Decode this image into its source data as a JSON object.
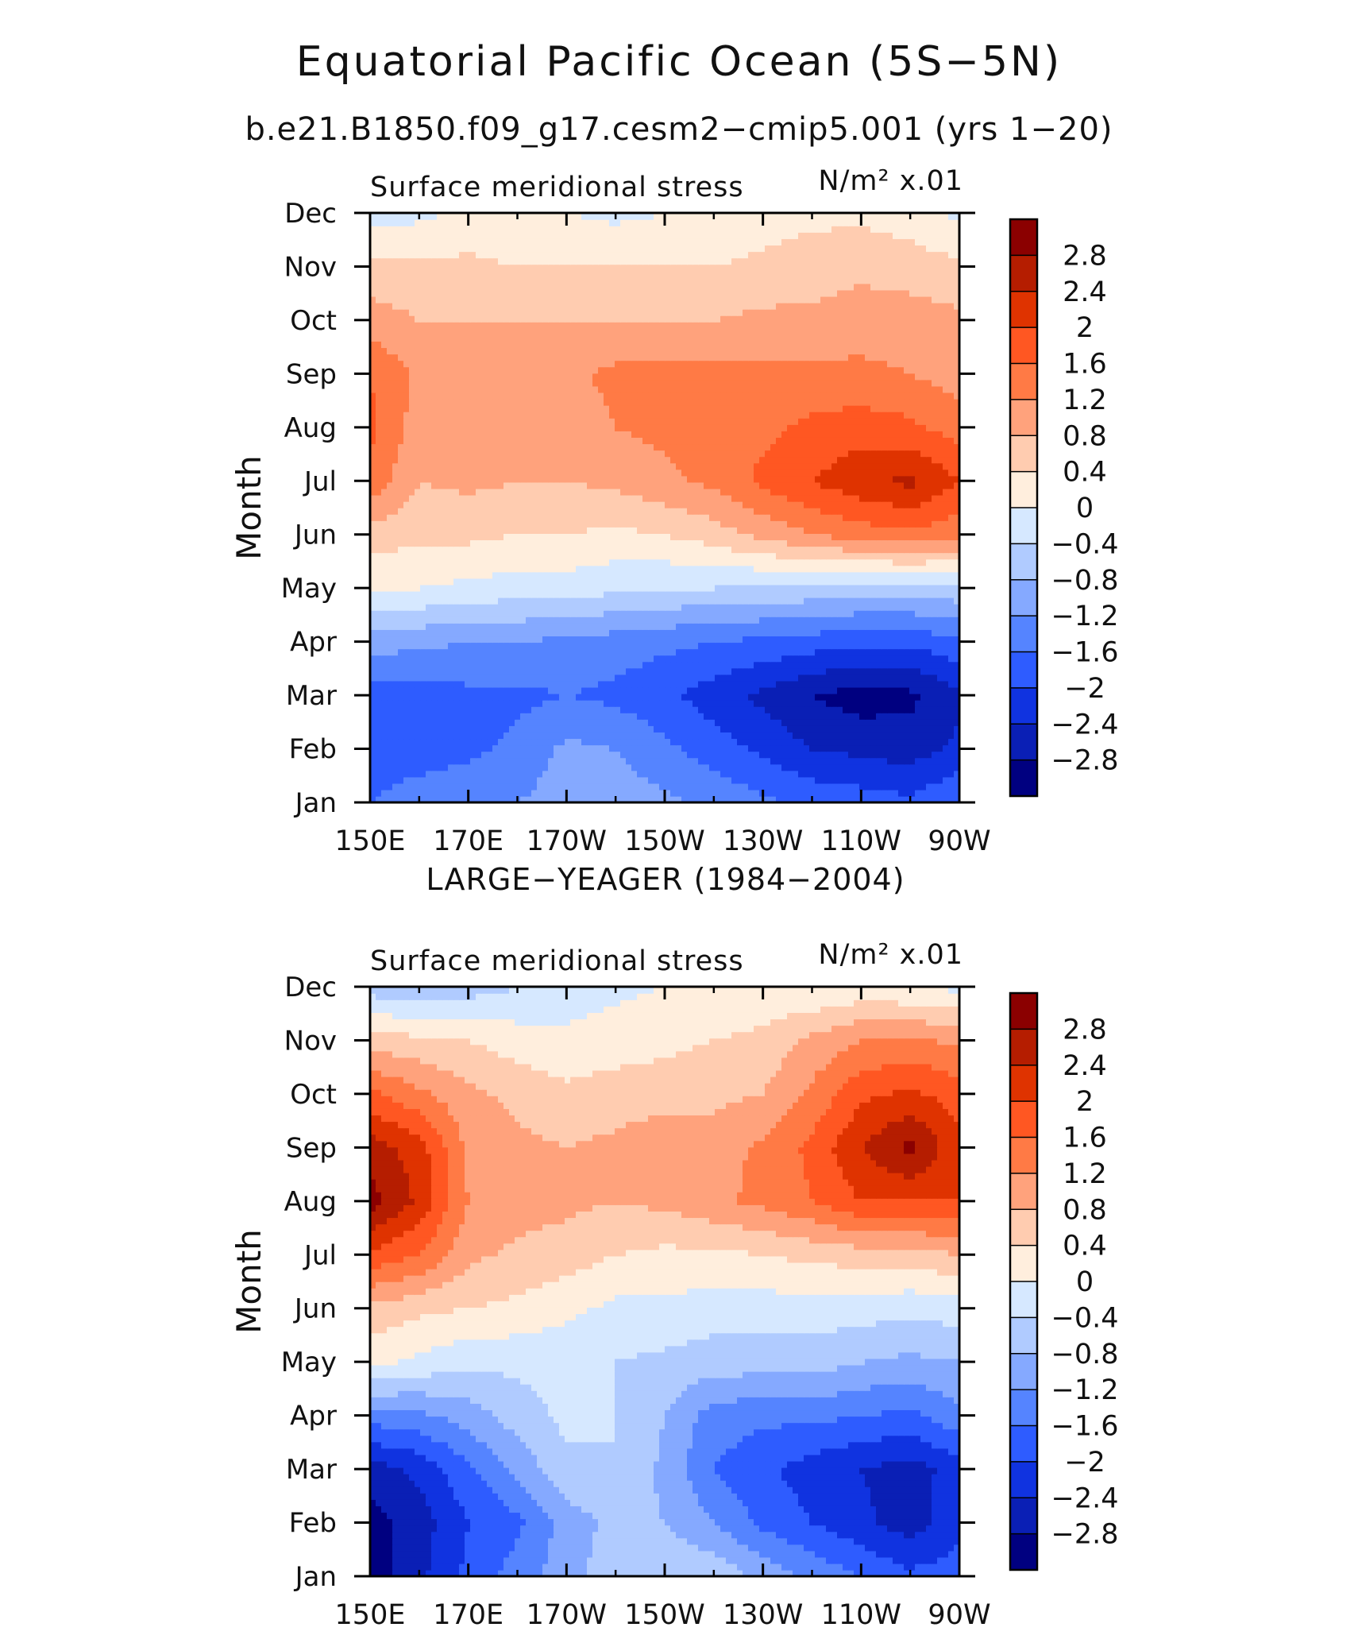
{
  "figure": {
    "title": "Equatorial Pacific Ocean (5S−5N)",
    "subtitle": "b.e21.B1850.f09_g17.cesm2−cmip5.001 (yrs 1−20)",
    "y_axis_title": "Month"
  },
  "chart_data": [
    {
      "type": "heatmap",
      "title": "",
      "left_label": "Surface meridional stress",
      "units_label": "N/m² x.01",
      "xlabel": "",
      "ylabel": "Month",
      "x_ticks": [
        "150E",
        "170E",
        "170W",
        "150W",
        "130W",
        "110W",
        "90W"
      ],
      "x_values": [
        150,
        170,
        190,
        210,
        230,
        250,
        270
      ],
      "y_ticks": [
        "Jan",
        "Feb",
        "Mar",
        "Apr",
        "May",
        "Jun",
        "Jul",
        "Aug",
        "Sep",
        "Oct",
        "Nov",
        "Dec"
      ],
      "colorbar_levels": [
        -2.8,
        -2.4,
        -2,
        -1.6,
        -1.2,
        -0.8,
        -0.4,
        0,
        0.4,
        0.8,
        1.2,
        1.6,
        2,
        2.4,
        2.8
      ],
      "colorbar_labels": [
        "2.8",
        "2.4",
        "2",
        "1.6",
        "1.2",
        "0.8",
        "0.4",
        "0",
        "−0.4",
        "−0.8",
        "−1.2",
        "−1.6",
        "−2",
        "−2.4",
        "−2.8"
      ],
      "colorbar_colors": [
        "#8b0000",
        "#b51d00",
        "#df3300",
        "#ff5722",
        "#ff7a45",
        "#ffa27c",
        "#ffccb0",
        "#ffeedd",
        "#d6e8ff",
        "#b0cbff",
        "#85a9ff",
        "#5584ff",
        "#2e5cff",
        "#1033e0",
        "#0a1fb5",
        "#000080"
      ],
      "lons": [
        150,
        160,
        170,
        180,
        190,
        200,
        210,
        220,
        230,
        240,
        250,
        260,
        270
      ],
      "months": [
        "Jan",
        "Feb",
        "Mar",
        "Apr",
        "May",
        "Jun",
        "Jul",
        "Aug",
        "Sep",
        "Oct",
        "Nov",
        "Dec"
      ],
      "values": [
        [
          -1.6,
          -1.4,
          -1.3,
          -1.2,
          -1.0,
          -1.0,
          -1.1,
          -1.3,
          -1.5,
          -1.7,
          -1.8,
          -1.9,
          -1.6
        ],
        [
          -1.8,
          -1.8,
          -1.7,
          -1.5,
          -1.1,
          -1.2,
          -1.5,
          -1.8,
          -2.1,
          -2.4,
          -2.5,
          -2.6,
          -2.3
        ],
        [
          -1.8,
          -1.8,
          -1.7,
          -1.7,
          -1.6,
          -1.7,
          -1.9,
          -2.2,
          -2.5,
          -2.8,
          -3.0,
          -2.9,
          -2.5
        ],
        [
          -1.0,
          -1.1,
          -1.2,
          -1.2,
          -1.3,
          -1.4,
          -1.5,
          -1.6,
          -1.7,
          -1.8,
          -1.9,
          -1.9,
          -1.7
        ],
        [
          0.1,
          0.0,
          -0.1,
          -0.2,
          -0.2,
          -0.3,
          -0.4,
          -0.4,
          -0.5,
          -0.5,
          -0.6,
          -0.6,
          -0.5
        ],
        [
          0.6,
          0.5,
          0.5,
          0.4,
          0.4,
          0.3,
          0.4,
          0.6,
          0.9,
          1.2,
          1.4,
          1.5,
          1.3
        ],
        [
          1.5,
          0.8,
          0.9,
          0.8,
          0.8,
          0.9,
          1.1,
          1.3,
          1.7,
          2.0,
          2.3,
          2.5,
          2.0
        ],
        [
          1.7,
          1.0,
          0.9,
          0.9,
          1.0,
          1.2,
          1.3,
          1.4,
          1.5,
          1.7,
          1.8,
          1.7,
          1.4
        ],
        [
          1.6,
          1.1,
          1.0,
          1.0,
          1.1,
          1.3,
          1.3,
          1.3,
          1.3,
          1.3,
          1.3,
          1.2,
          1.0
        ],
        [
          1.0,
          0.8,
          0.8,
          0.8,
          0.8,
          0.8,
          0.8,
          0.8,
          0.9,
          0.9,
          1.0,
          1.0,
          0.9
        ],
        [
          0.5,
          0.5,
          0.5,
          0.4,
          0.4,
          0.4,
          0.4,
          0.4,
          0.5,
          0.6,
          0.7,
          0.6,
          0.5
        ],
        [
          -0.2,
          -0.1,
          0.1,
          0.1,
          0.0,
          -0.1,
          0.0,
          0.1,
          0.2,
          0.3,
          0.3,
          0.2,
          -0.1
        ]
      ]
    },
    {
      "type": "heatmap",
      "title": "LARGE−YEAGER (1984−2004)",
      "left_label": "Surface meridional stress",
      "units_label": "N/m² x.01",
      "xlabel": "",
      "ylabel": "Month",
      "x_ticks": [
        "150E",
        "170E",
        "170W",
        "150W",
        "130W",
        "110W",
        "90W"
      ],
      "x_values": [
        150,
        170,
        190,
        210,
        230,
        250,
        270
      ],
      "y_ticks": [
        "Jan",
        "Feb",
        "Mar",
        "Apr",
        "May",
        "Jun",
        "Jul",
        "Aug",
        "Sep",
        "Oct",
        "Nov",
        "Dec"
      ],
      "colorbar_levels": [
        -2.8,
        -2.4,
        -2,
        -1.6,
        -1.2,
        -0.8,
        -0.4,
        0,
        0.4,
        0.8,
        1.2,
        1.6,
        2,
        2.4,
        2.8
      ],
      "colorbar_labels": [
        "2.8",
        "2.4",
        "2",
        "1.6",
        "1.2",
        "0.8",
        "0.4",
        "0",
        "−0.4",
        "−0.8",
        "−1.2",
        "−1.6",
        "−2",
        "−2.4",
        "−2.8"
      ],
      "colorbar_colors": [
        "#8b0000",
        "#b51d00",
        "#df3300",
        "#ff5722",
        "#ff7a45",
        "#ffa27c",
        "#ffccb0",
        "#ffeedd",
        "#d6e8ff",
        "#b0cbff",
        "#85a9ff",
        "#5584ff",
        "#2e5cff",
        "#1033e0",
        "#0a1fb5",
        "#000080"
      ],
      "lons": [
        150,
        160,
        170,
        180,
        190,
        200,
        210,
        220,
        230,
        240,
        250,
        260,
        270
      ],
      "months": [
        "Jan",
        "Feb",
        "Mar",
        "Apr",
        "May",
        "Jun",
        "Jul",
        "Aug",
        "Sep",
        "Oct",
        "Nov",
        "Dec"
      ],
      "values": [
        [
          -3.0,
          -2.5,
          -1.9,
          -1.4,
          -1.0,
          -0.5,
          -0.4,
          -0.5,
          -0.9,
          -1.3,
          -1.6,
          -1.9,
          -1.8
        ],
        [
          -3.0,
          -2.6,
          -2.0,
          -1.7,
          -1.0,
          -0.7,
          -0.8,
          -1.2,
          -1.7,
          -2.0,
          -2.3,
          -2.6,
          -2.1
        ],
        [
          -2.6,
          -2.3,
          -1.7,
          -1.1,
          -0.5,
          -0.4,
          -0.9,
          -1.6,
          -1.9,
          -2.2,
          -2.4,
          -2.6,
          -2.2
        ],
        [
          -1.4,
          -1.3,
          -1.0,
          -0.6,
          -0.3,
          -0.4,
          -0.8,
          -1.4,
          -1.5,
          -1.5,
          -1.6,
          -1.7,
          -1.3
        ],
        [
          0.1,
          -0.1,
          -0.3,
          -0.3,
          -0.3,
          -0.4,
          -0.5,
          -0.6,
          -0.6,
          -0.6,
          -0.8,
          -0.9,
          -0.8
        ],
        [
          0.7,
          0.5,
          0.4,
          0.3,
          0.1,
          -0.1,
          -0.1,
          -0.2,
          -0.2,
          -0.2,
          -0.2,
          -0.3,
          -0.2
        ],
        [
          1.9,
          1.6,
          0.9,
          0.7,
          0.6,
          0.4,
          0.3,
          0.3,
          0.4,
          0.5,
          0.6,
          0.6,
          0.8
        ],
        [
          3.0,
          2.3,
          1.2,
          1.0,
          0.9,
          0.8,
          0.9,
          1.1,
          1.3,
          1.6,
          2.0,
          2.0,
          2.0
        ],
        [
          2.6,
          2.2,
          1.1,
          0.9,
          0.8,
          0.9,
          1.1,
          1.0,
          1.3,
          1.7,
          2.4,
          2.9,
          2.1
        ],
        [
          1.7,
          1.3,
          0.9,
          0.7,
          0.5,
          0.6,
          0.6,
          0.7,
          0.8,
          1.3,
          1.9,
          2.1,
          1.8
        ],
        [
          0.6,
          0.5,
          0.4,
          0.2,
          0.1,
          0.2,
          0.3,
          0.4,
          0.5,
          0.9,
          1.2,
          1.3,
          1.1
        ],
        [
          -0.6,
          -0.7,
          -0.6,
          -0.4,
          -0.2,
          -0.1,
          0.0,
          0.1,
          0.1,
          0.0,
          0.1,
          0.0,
          -0.1
        ]
      ]
    }
  ]
}
